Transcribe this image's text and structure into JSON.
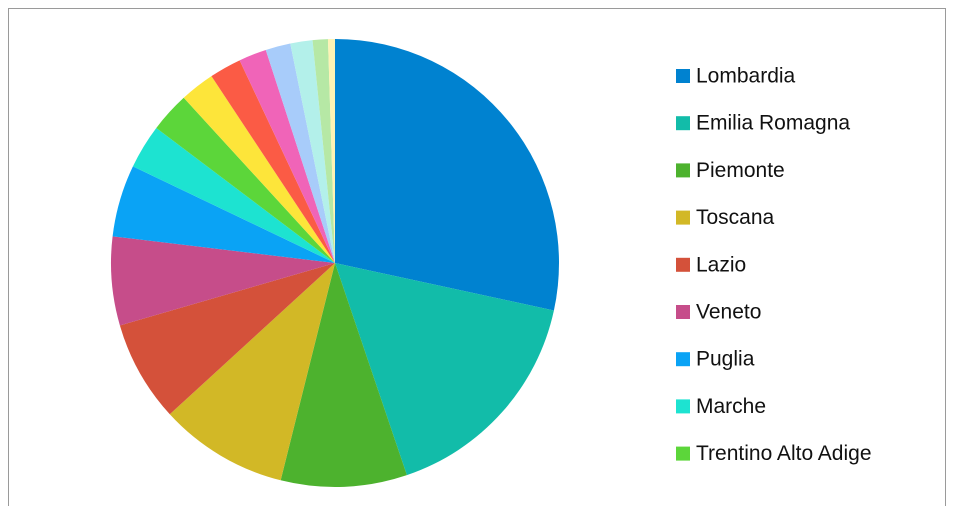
{
  "chart_data": {
    "type": "pie",
    "categories": [
      "Lombardia",
      "Emilia Romagna",
      "Piemonte",
      "Toscana",
      "Lazio",
      "Veneto",
      "Puglia",
      "Marche",
      "Trentino Alto Adige",
      null,
      null,
      null,
      null,
      null,
      null,
      null
    ],
    "values": [
      28.4,
      16.4,
      9.1,
      9.3,
      7.3,
      6.4,
      5.2,
      3.2,
      2.9,
      2.5,
      2.3,
      2.0,
      1.8,
      1.6,
      1.1,
      0.5
    ],
    "colors": [
      "#0082d0",
      "#12bca9",
      "#4db22e",
      "#d2b826",
      "#d4513a",
      "#c64d8a",
      "#0aa3f5",
      "#1de3d1",
      "#5cd63a",
      "#fde53a",
      "#fb5b45",
      "#f064b8",
      "#a8ccfa",
      "#b3f0ea",
      "#b6e8a5",
      "#fdf3b5"
    ]
  }
}
